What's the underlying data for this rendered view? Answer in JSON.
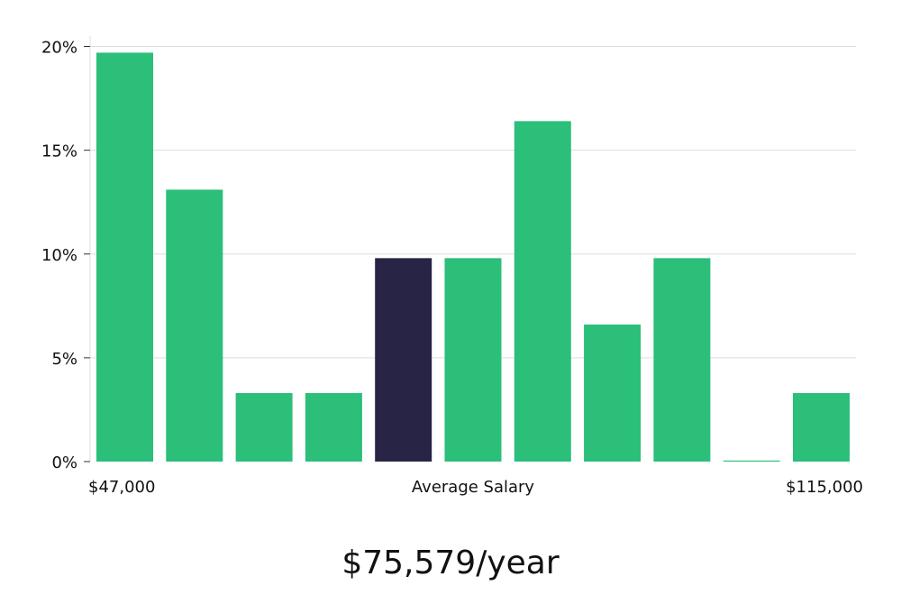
{
  "chart_data": {
    "type": "bar",
    "values": [
      19.7,
      13.1,
      3.3,
      3.3,
      9.8,
      9.8,
      16.4,
      6.6,
      9.8,
      0.05,
      3.3
    ],
    "highlight_index": 4,
    "yticks": [
      "0%",
      "5%",
      "10%",
      "15%",
      "20%"
    ],
    "ylim": [
      0,
      20.5
    ],
    "grid": true,
    "x_left_label": "$47,000",
    "x_center_label": "Average Salary",
    "x_right_label": "$115,000",
    "colors": {
      "bar": "#2bbf79",
      "highlight": "#272445",
      "grid": "#dddddd"
    }
  },
  "headline": "$75,579/year"
}
